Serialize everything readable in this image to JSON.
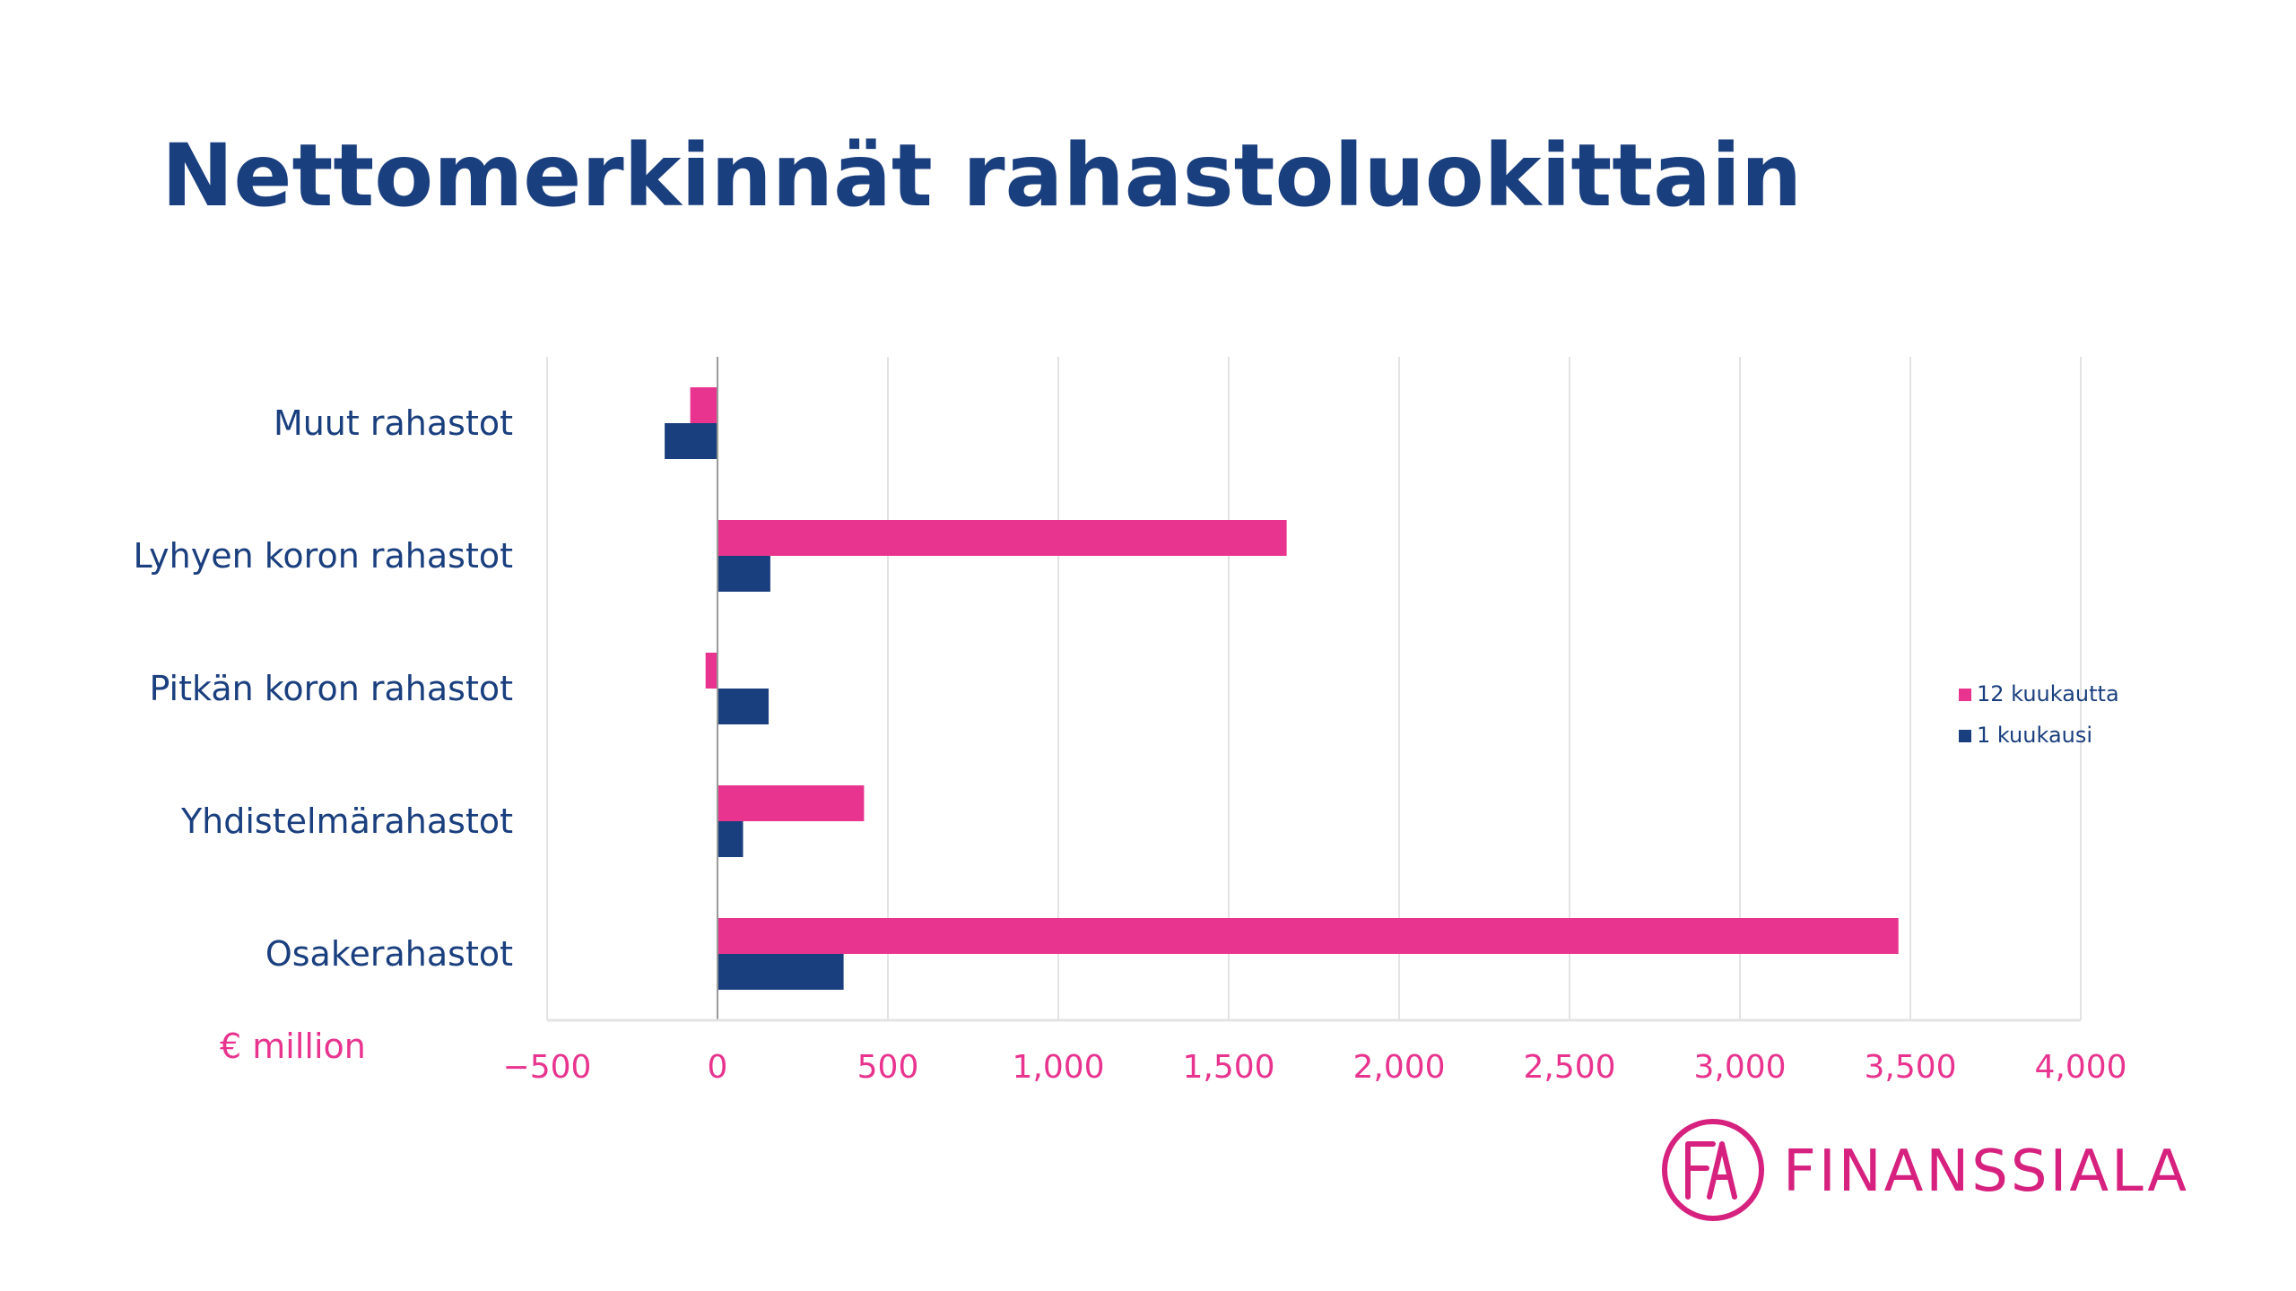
{
  "slide": {
    "title": "Nettomerkinnät rahastoluokittain"
  },
  "brand": {
    "name": "FINANSSIALA",
    "monogram": "FA"
  },
  "colors": {
    "pink": "#e8348f",
    "navy": "#1a3f7e",
    "grid": "#e3e3e3",
    "axis": "#999999"
  },
  "chart_data": {
    "type": "bar",
    "orientation": "horizontal",
    "title": "Nettomerkinnät rahastoluokittain",
    "unit_label": "€ million",
    "categories": [
      "Muut rahastot",
      "Lyhyen koron rahastot",
      "Pitkän koron rahastot",
      "Yhdistelmärahastot",
      "Osakerahastot"
    ],
    "series": [
      {
        "name": "12 kuukautta",
        "color": "#e8348f",
        "values": [
          -80,
          1670,
          -35,
          430,
          3465
        ]
      },
      {
        "name": "1 kuukausi",
        "color": "#1a3f7e",
        "values": [
          -155,
          155,
          150,
          75,
          370
        ]
      }
    ],
    "xlim": [
      -500,
      4000
    ],
    "xticks": [
      -500,
      0,
      500,
      1000,
      1500,
      2000,
      2500,
      3000,
      3500,
      4000
    ],
    "xtick_labels": [
      "−500",
      "0",
      "500",
      "1,000",
      "1,500",
      "2,000",
      "2,500",
      "3,000",
      "3,500",
      "4,000"
    ],
    "grid": true,
    "legend_position": "right"
  }
}
